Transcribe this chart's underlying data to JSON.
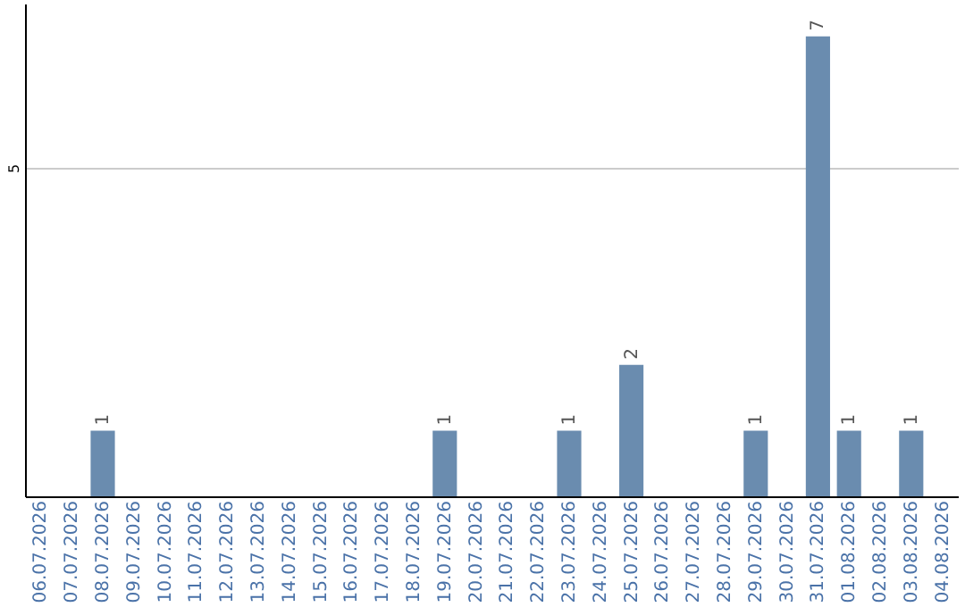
{
  "chart_data": {
    "type": "bar",
    "categories": [
      "06.07.2026",
      "07.07.2026",
      "08.07.2026",
      "09.07.2026",
      "10.07.2026",
      "11.07.2026",
      "12.07.2026",
      "13.07.2026",
      "14.07.2026",
      "15.07.2026",
      "16.07.2026",
      "17.07.2026",
      "18.07.2026",
      "19.07.2026",
      "20.07.2026",
      "21.07.2026",
      "22.07.2026",
      "23.07.2026",
      "24.07.2026",
      "25.07.2026",
      "26.07.2026",
      "27.07.2026",
      "28.07.2026",
      "29.07.2026",
      "30.07.2026",
      "31.07.2026",
      "01.08.2026",
      "02.08.2026",
      "03.08.2026",
      "04.08.2026"
    ],
    "values": [
      0,
      0,
      1,
      0,
      0,
      0,
      0,
      0,
      0,
      0,
      0,
      0,
      0,
      1,
      0,
      0,
      0,
      1,
      0,
      2,
      0,
      0,
      0,
      1,
      0,
      7,
      1,
      0,
      1,
      0
    ],
    "value_labels": [
      null,
      null,
      "1",
      null,
      null,
      null,
      null,
      null,
      null,
      null,
      null,
      null,
      null,
      "1",
      null,
      null,
      null,
      "1",
      null,
      "2",
      null,
      null,
      null,
      "1",
      null,
      "7",
      "1",
      null,
      "1",
      null
    ],
    "color": "#6a8caf",
    "ylim": [
      0,
      7.5
    ],
    "yticks": [
      5
    ],
    "grid": "y"
  }
}
